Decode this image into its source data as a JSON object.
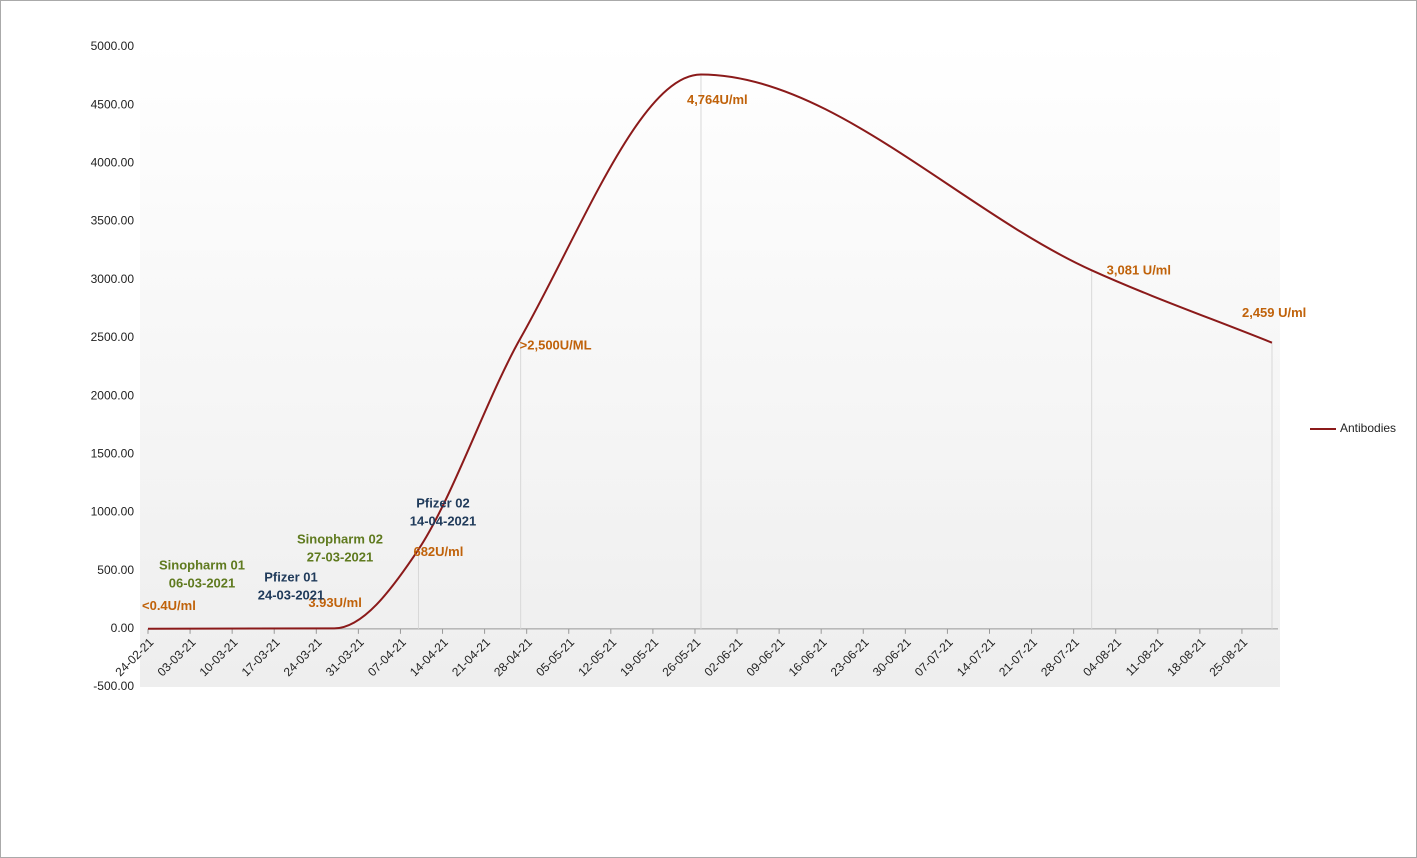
{
  "chart_data": {
    "type": "line",
    "x": [
      "24-02-21",
      "27-03-21",
      "10-04-21",
      "27-04-21",
      "27-05-21",
      "31-07-21",
      "30-08-21"
    ],
    "series": [
      {
        "name": "Antibodies",
        "color": "#8b1a1a",
        "values": [
          0.4,
          3.93,
          682,
          2500,
          4764,
          3081,
          2459
        ],
        "value_labels": [
          "<0.4U/ml",
          "3.93U/ml",
          "682U/ml",
          ">2,500U/ML",
          "4,764U/ml",
          "3,081 U/ml",
          "2,459 U/ml"
        ]
      }
    ],
    "xlim": [
      "24-02-21",
      "31-08-21"
    ],
    "xticks": [
      "24-02-21",
      "03-03-21",
      "10-03-21",
      "17-03-21",
      "24-03-21",
      "31-03-21",
      "07-04-21",
      "14-04-21",
      "21-04-21",
      "28-04-21",
      "05-05-21",
      "12-05-21",
      "19-05-21",
      "26-05-21",
      "02-06-21",
      "09-06-21",
      "16-06-21",
      "23-06-21",
      "30-06-21",
      "07-07-21",
      "14-07-21",
      "21-07-21",
      "28-07-21",
      "04-08-21",
      "11-08-21",
      "18-08-21",
      "25-08-21"
    ],
    "ylim": [
      -500,
      5000
    ],
    "yticks": [
      {
        "value": -500,
        "label": "-500.00"
      },
      {
        "value": 0,
        "label": "0.00"
      },
      {
        "value": 500,
        "label": "500.00"
      },
      {
        "value": 1000,
        "label": "1000.00"
      },
      {
        "value": 1500,
        "label": "1500.00"
      },
      {
        "value": 2000,
        "label": "2000.00"
      },
      {
        "value": 2500,
        "label": "2500.00"
      },
      {
        "value": 3000,
        "label": "3000.00"
      },
      {
        "value": 3500,
        "label": "3500.00"
      },
      {
        "value": 4000,
        "label": "4000.00"
      },
      {
        "value": 4500,
        "label": "4500.00"
      },
      {
        "value": 5000,
        "label": "5000.00"
      }
    ],
    "grid": false,
    "legend": "right",
    "value_label_color": "#c0620a",
    "annotations": [
      {
        "label": "Sinopharm 01",
        "date": "06-03-2021",
        "color": "#5f7a1f"
      },
      {
        "label": "Pfizer 01",
        "date": "24-03-2021",
        "color": "#1f3a5a"
      },
      {
        "label": "Sinopharm 02",
        "date": "27-03-2021",
        "color": "#5f7a1f"
      },
      {
        "label": "Pfizer 02",
        "date": "14-04-2021",
        "color": "#1f3a5a"
      }
    ]
  }
}
